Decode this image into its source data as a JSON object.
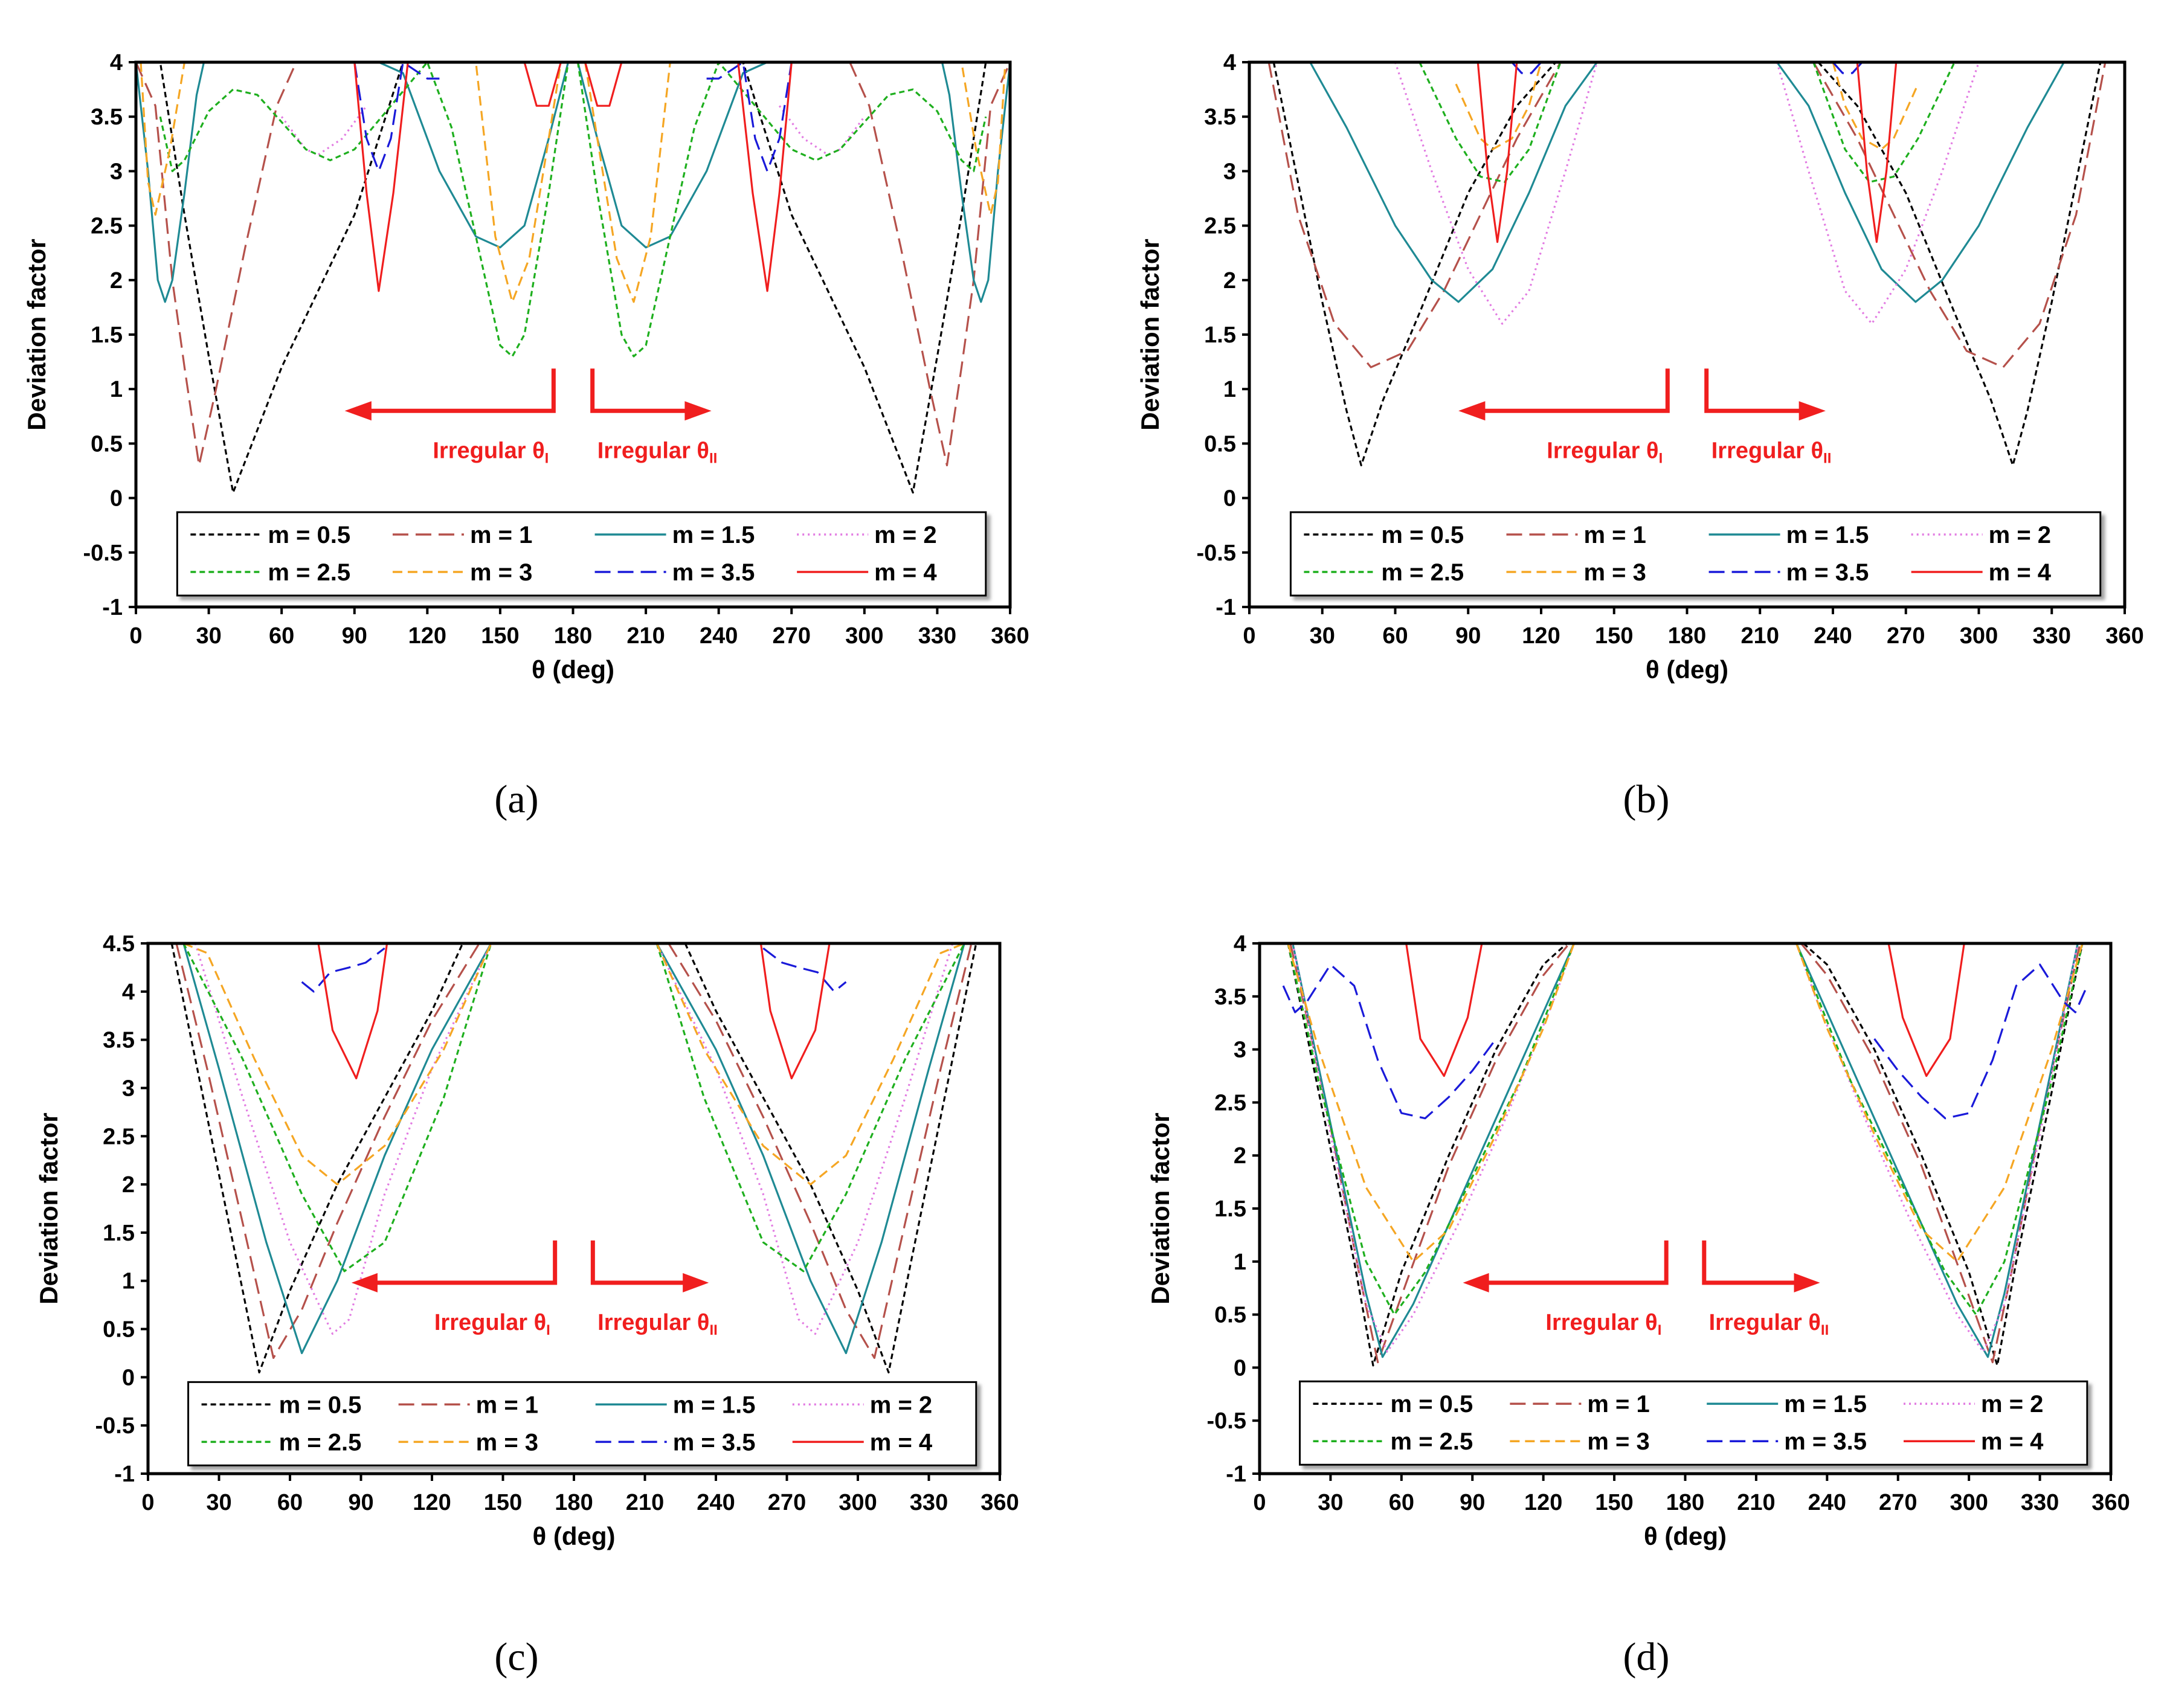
{
  "figure": {
    "panel_labels": [
      "(a)",
      "(b)",
      "(c)",
      "(d)"
    ]
  },
  "series_styles": [
    {
      "name": "m = 0.5",
      "color": "#000000",
      "dash": "short"
    },
    {
      "name": "m = 1",
      "color": "#B5514B",
      "dash": "long"
    },
    {
      "name": "m = 1.5",
      "color": "#1F8A94",
      "dash": "solid"
    },
    {
      "name": "m = 2",
      "color": "#E27BE2",
      "dash": "dot"
    },
    {
      "name": "m = 2.5",
      "color": "#1EAF1E",
      "dash": "short"
    },
    {
      "name": "m = 3",
      "color": "#F5A623",
      "dash": "medium"
    },
    {
      "name": "m = 3.5",
      "color": "#1A1AD9",
      "dash": "long"
    },
    {
      "name": "m = 4",
      "color": "#F01E1E",
      "dash": "solid"
    }
  ],
  "annotation": {
    "left": "Irregular θ",
    "left_sub": "I",
    "right": "Irregular θ",
    "right_sub": "II",
    "color": "#F01E1E"
  },
  "chart_data": [
    {
      "type": "line",
      "panel": "(a)",
      "xlabel": "θ (deg)",
      "ylabel": "Deviation factor",
      "xlim": [
        0,
        360
      ],
      "ylim": [
        -1,
        4
      ],
      "xticks": [
        "0",
        "30",
        "60",
        "90",
        "120",
        "150",
        "180",
        "210",
        "240",
        "270",
        "300",
        "330",
        "360"
      ],
      "yticks": [
        "4",
        "3.5",
        "3",
        "2.5",
        "2",
        "1.5",
        "1",
        "0.5",
        "0",
        "-0.5",
        "-1"
      ],
      "series": [
        {
          "name": "m = 0.5",
          "x": [
            0,
            10,
            20,
            30,
            40,
            60,
            90,
            110,
            130
          ],
          "values": [
            4,
            4,
            2.6,
            1.3,
            0.05,
            1.2,
            2.6,
            4,
            4
          ]
        },
        {
          "name": "m = 1",
          "x": [
            0,
            8,
            15,
            20,
            26,
            33,
            45,
            58,
            66
          ],
          "values": [
            4,
            3.6,
            2.0,
            1.2,
            0.3,
            1.0,
            2.3,
            3.6,
            4
          ]
        },
        {
          "name": "m = 1.5",
          "x": [
            0,
            5,
            9,
            12,
            15,
            20,
            25,
            28,
            100,
            110,
            125,
            140,
            150,
            160,
            170,
            178
          ],
          "values": [
            4,
            3.0,
            2.0,
            1.8,
            2.0,
            2.8,
            3.7,
            4,
            4,
            3.9,
            3.0,
            2.4,
            2.3,
            2.5,
            3.3,
            4
          ]
        },
        {
          "name": "m = 2",
          "x": [
            60,
            70,
            75,
            85,
            95
          ],
          "values": [
            3.5,
            3.2,
            3.15,
            3.3,
            3.6
          ]
        },
        {
          "name": "m = 2.5",
          "x": [
            10,
            15,
            20,
            30,
            40,
            50,
            60,
            70,
            80,
            90,
            120,
            130,
            140,
            150,
            155,
            160,
            170,
            178
          ],
          "values": [
            3.5,
            3.0,
            3.1,
            3.55,
            3.75,
            3.7,
            3.45,
            3.2,
            3.1,
            3.2,
            4,
            3.4,
            2.4,
            1.4,
            1.3,
            1.5,
            2.8,
            4
          ]
        },
        {
          "name": "m = 3",
          "x": [
            2,
            5,
            8,
            14,
            20,
            140,
            148,
            155,
            162,
            170,
            175
          ],
          "values": [
            4,
            2.9,
            2.6,
            3.2,
            4,
            4,
            2.4,
            1.8,
            2.2,
            3.3,
            4
          ]
        },
        {
          "name": "m = 3.5",
          "x": [
            90,
            95,
            100,
            105,
            110,
            120,
            125
          ],
          "values": [
            4,
            3.3,
            3.0,
            3.3,
            4,
            3.85,
            3.85
          ]
        },
        {
          "name": "m = 4",
          "x": [
            90,
            95,
            100,
            106,
            112,
            160,
            165,
            170,
            175
          ],
          "values": [
            4,
            2.8,
            1.9,
            2.8,
            4,
            4,
            3.6,
            3.6,
            4
          ]
        }
      ]
    },
    {
      "type": "line",
      "panel": "(b)",
      "xlabel": "θ (deg)",
      "ylabel": "Deviation factor",
      "xlim": [
        0,
        360
      ],
      "ylim": [
        -1,
        4
      ],
      "xticks": [
        "0",
        "30",
        "60",
        "90",
        "120",
        "150",
        "180",
        "210",
        "240",
        "270",
        "300",
        "330",
        "360"
      ],
      "yticks": [
        "4",
        "3.5",
        "3",
        "2.5",
        "2",
        "1.5",
        "1",
        "0.5",
        "0",
        "-0.5",
        "-1"
      ],
      "series": [
        {
          "name": "m = 0.5",
          "x": [
            10,
            20,
            30,
            40,
            46,
            55,
            70,
            90,
            110,
            126
          ],
          "values": [
            4,
            2.9,
            1.8,
            0.8,
            0.3,
            0.9,
            1.7,
            2.8,
            3.6,
            4
          ]
        },
        {
          "name": "m = 1",
          "x": [
            8,
            20,
            35,
            50,
            65,
            80,
            95,
            110,
            128
          ],
          "values": [
            4,
            2.6,
            1.6,
            1.2,
            1.35,
            1.9,
            2.6,
            3.3,
            4
          ]
        },
        {
          "name": "m = 1.5",
          "x": [
            25,
            40,
            60,
            75,
            86,
            100,
            115,
            130,
            143
          ],
          "values": [
            4,
            3.4,
            2.5,
            2.0,
            1.8,
            2.1,
            2.8,
            3.6,
            4
          ]
        },
        {
          "name": "m = 2",
          "x": [
            60,
            75,
            90,
            104,
            115,
            130,
            143
          ],
          "values": [
            4,
            3.0,
            2.1,
            1.6,
            1.9,
            3.0,
            4
          ]
        },
        {
          "name": "m = 2.5",
          "x": [
            70,
            85,
            95,
            105,
            115,
            128
          ],
          "values": [
            4,
            3.3,
            2.95,
            2.9,
            3.2,
            4
          ]
        },
        {
          "name": "m = 3",
          "x": [
            85,
            95,
            100,
            108,
            115,
            120
          ],
          "values": [
            3.8,
            3.3,
            3.2,
            3.3,
            3.6,
            4
          ]
        },
        {
          "name": "m = 3.5",
          "x": [
            108,
            112,
            116,
            120
          ],
          "values": [
            4,
            3.9,
            3.9,
            4
          ]
        },
        {
          "name": "m = 4",
          "x": [
            94,
            98,
            102,
            106,
            110
          ],
          "values": [
            4,
            3.0,
            2.35,
            3.0,
            4
          ]
        }
      ]
    },
    {
      "type": "line",
      "panel": "(c)",
      "xlabel": "θ (deg)",
      "ylabel": "Deviation factor",
      "xlim": [
        0,
        360
      ],
      "ylim": [
        -1,
        4.5
      ],
      "xticks": [
        "0",
        "30",
        "60",
        "90",
        "120",
        "150",
        "180",
        "210",
        "240",
        "270",
        "300",
        "330",
        "360"
      ],
      "yticks": [
        "4.5",
        "4",
        "3.5",
        "3",
        "2.5",
        "2",
        "1.5",
        "1",
        "0.5",
        "0",
        "-0.5",
        "-1"
      ],
      "series": [
        {
          "name": "m = 0.5",
          "x": [
            10,
            20,
            30,
            40,
            47,
            60,
            80,
            100,
            120,
            133
          ],
          "values": [
            4.5,
            3.3,
            2.1,
            0.9,
            0.05,
            0.9,
            2.0,
            2.9,
            3.8,
            4.5
          ]
        },
        {
          "name": "m = 1",
          "x": [
            12,
            25,
            40,
            53,
            65,
            80,
            100,
            120,
            140
          ],
          "values": [
            4.5,
            3.2,
            1.6,
            0.2,
            0.7,
            1.6,
            2.7,
            3.7,
            4.5
          ]
        },
        {
          "name": "m = 1.5",
          "x": [
            15,
            30,
            50,
            65,
            80,
            100,
            120,
            145
          ],
          "values": [
            4.5,
            3.2,
            1.4,
            0.25,
            1.0,
            2.3,
            3.4,
            4.5
          ]
        },
        {
          "name": "m = 2",
          "x": [
            20,
            40,
            60,
            78,
            85,
            100,
            120,
            145
          ],
          "values": [
            4.5,
            2.9,
            1.4,
            0.45,
            0.6,
            1.9,
            3.2,
            4.5
          ]
        },
        {
          "name": "m = 2.5",
          "x": [
            15,
            40,
            65,
            83,
            100,
            125,
            145
          ],
          "values": [
            4.5,
            3.3,
            1.9,
            1.1,
            1.4,
            2.9,
            4.5
          ]
        },
        {
          "name": "m = 3",
          "x": [
            15,
            25,
            45,
            65,
            80,
            100,
            125,
            145
          ],
          "values": [
            4.5,
            4.4,
            3.3,
            2.3,
            2.0,
            2.4,
            3.4,
            4.5
          ]
        },
        {
          "name": "m = 3.5",
          "x": [
            65,
            70,
            77,
            85,
            92,
            100
          ],
          "values": [
            4.1,
            4.0,
            4.2,
            4.25,
            4.3,
            4.45
          ]
        },
        {
          "name": "m = 4",
          "x": [
            72,
            78,
            88,
            97,
            101
          ],
          "values": [
            4.5,
            3.6,
            3.1,
            3.8,
            4.5
          ]
        }
      ]
    },
    {
      "type": "line",
      "panel": "(d)",
      "xlabel": "θ (deg)",
      "ylabel": "Deviation factor",
      "xlim": [
        0,
        360
      ],
      "ylim": [
        -1,
        4
      ],
      "xticks": [
        "0",
        "30",
        "60",
        "90",
        "120",
        "150",
        "180",
        "210",
        "240",
        "270",
        "300",
        "330",
        "360"
      ],
      "yticks": [
        "4",
        "3.5",
        "3",
        "2.5",
        "2",
        "1.5",
        "1",
        "0.5",
        "0",
        "-0.5",
        "-1"
      ],
      "series": [
        {
          "name": "m = 0.5",
          "x": [
            12,
            25,
            40,
            48,
            60,
            80,
            100,
            120,
            130
          ],
          "values": [
            4,
            2.6,
            1.0,
            0.02,
            0.9,
            2.0,
            3.0,
            3.8,
            4
          ]
        },
        {
          "name": "m = 1",
          "x": [
            13,
            28,
            42,
            50,
            62,
            80,
            100,
            120,
            131
          ],
          "values": [
            4,
            2.5,
            0.9,
            0.05,
            0.8,
            1.9,
            2.9,
            3.7,
            4
          ]
        },
        {
          "name": "m = 1.5",
          "x": [
            14,
            30,
            45,
            52,
            65,
            85,
            105,
            125,
            133
          ],
          "values": [
            4,
            2.3,
            0.7,
            0.1,
            0.6,
            1.6,
            2.6,
            3.6,
            4
          ]
        },
        {
          "name": "m = 2",
          "x": [
            14,
            30,
            45,
            54,
            65,
            85,
            105,
            125,
            133
          ],
          "values": [
            4,
            2.2,
            0.6,
            0.15,
            0.5,
            1.4,
            2.4,
            3.5,
            4
          ]
        },
        {
          "name": "m = 2.5",
          "x": [
            12,
            25,
            45,
            57,
            70,
            90,
            110,
            133
          ],
          "values": [
            4,
            2.7,
            1.0,
            0.5,
            0.9,
            1.8,
            2.7,
            4
          ]
        },
        {
          "name": "m = 3",
          "x": [
            12,
            25,
            45,
            65,
            80,
            100,
            120,
            133
          ],
          "values": [
            4,
            3.0,
            1.7,
            1.0,
            1.3,
            2.2,
            3.2,
            4
          ]
        },
        {
          "name": "m = 3.5",
          "x": [
            10,
            15,
            20,
            30,
            40,
            50,
            60,
            70,
            80,
            90,
            100
          ],
          "values": [
            3.6,
            3.35,
            3.45,
            3.8,
            3.6,
            2.9,
            2.4,
            2.35,
            2.55,
            2.8,
            3.1
          ]
        },
        {
          "name": "m = 4",
          "x": [
            62,
            68,
            78,
            88,
            94
          ],
          "values": [
            4,
            3.1,
            2.75,
            3.3,
            4
          ]
        }
      ]
    }
  ]
}
